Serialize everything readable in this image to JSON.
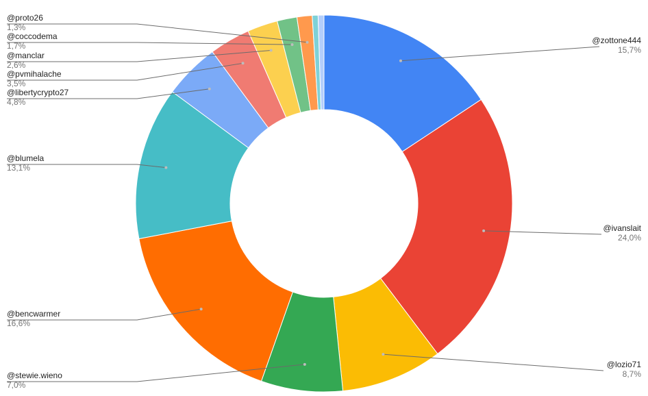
{
  "chart_data": {
    "type": "pie",
    "donut": true,
    "title": "",
    "slices": [
      {
        "name": "@zottone444",
        "label": "15,7%",
        "value": 15.7,
        "color": "#4285f4"
      },
      {
        "name": "@ivanslait",
        "label": "24,0%",
        "value": 24.0,
        "color": "#ea4335"
      },
      {
        "name": "@lozio71",
        "label": "8,7%",
        "value": 8.7,
        "color": "#fbbc04"
      },
      {
        "name": "@stewie.wieno",
        "label": "7,0%",
        "value": 7.0,
        "color": "#34a853"
      },
      {
        "name": "@bencwarmer",
        "label": "16,6%",
        "value": 16.6,
        "color": "#ff6d01"
      },
      {
        "name": "@blumela",
        "label": "13,1%",
        "value": 13.1,
        "color": "#46bdc6"
      },
      {
        "name": "@libertycrypto27",
        "label": "4,8%",
        "value": 4.8,
        "color": "#7baaf7"
      },
      {
        "name": "@pvmihalache",
        "label": "3,5%",
        "value": 3.5,
        "color": "#f07b72"
      },
      {
        "name": "@manclar",
        "label": "2,6%",
        "value": 2.6,
        "color": "#fcd04f"
      },
      {
        "name": "@coccodema",
        "label": "1,7%",
        "value": 1.7,
        "color": "#71c287"
      },
      {
        "name": "@proto26",
        "label": "1,3%",
        "value": 1.3,
        "color": "#ff994d"
      },
      {
        "name": "",
        "label": "",
        "value": 0.5,
        "color": "#7ed1d7"
      },
      {
        "name": "",
        "label": "",
        "value": 0.5,
        "color": "#b3cefb"
      }
    ]
  }
}
